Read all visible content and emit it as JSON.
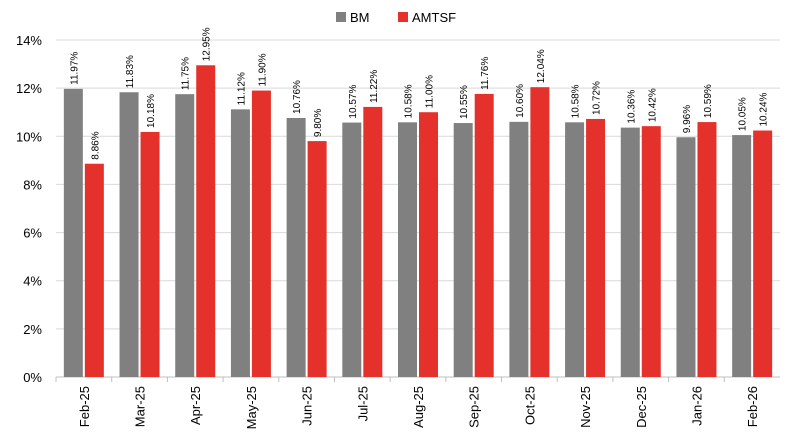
{
  "chart_data": {
    "type": "bar",
    "categories": [
      "Feb-25",
      "Mar-25",
      "Apr-25",
      "May-25",
      "Jun-25",
      "Jul-25",
      "Aug-25",
      "Sep-25",
      "Oct-25",
      "Nov-25",
      "Dec-25",
      "Jan-26",
      "Feb-26"
    ],
    "series": [
      {
        "name": "BM",
        "color": "#808080",
        "values": [
          11.97,
          11.83,
          11.75,
          11.12,
          10.76,
          10.57,
          10.58,
          10.55,
          10.6,
          10.58,
          10.36,
          9.96,
          10.05
        ],
        "labels": [
          "11.97%",
          "11.83%",
          "11.75%",
          "11.12%",
          "10.76%",
          "10.57%",
          "10.58%",
          "10.55%",
          "10.60%",
          "10.58%",
          "10.36%",
          "9.96%",
          "10.05%"
        ]
      },
      {
        "name": "AMTSF",
        "color": "#e4312b",
        "values": [
          8.86,
          10.18,
          12.95,
          11.9,
          9.8,
          11.22,
          11.0,
          11.76,
          12.04,
          10.72,
          10.42,
          10.59,
          10.24
        ],
        "labels": [
          "8.86%",
          "10.18%",
          "12.95%",
          "11.90%",
          "9.80%",
          "11.22%",
          "11.00%",
          "11.76%",
          "12.04%",
          "10.72%",
          "10.42%",
          "10.59%",
          "10.24%"
        ]
      }
    ],
    "y_ticks": [
      "0%",
      "2%",
      "4%",
      "6%",
      "8%",
      "10%",
      "12%",
      "14%"
    ],
    "y_tick_values": [
      0,
      2,
      4,
      6,
      8,
      10,
      12,
      14
    ],
    "ylim": [
      0,
      14
    ],
    "grid": true,
    "legend_position": "top-center",
    "title": "",
    "xlabel": "",
    "ylabel": ""
  }
}
